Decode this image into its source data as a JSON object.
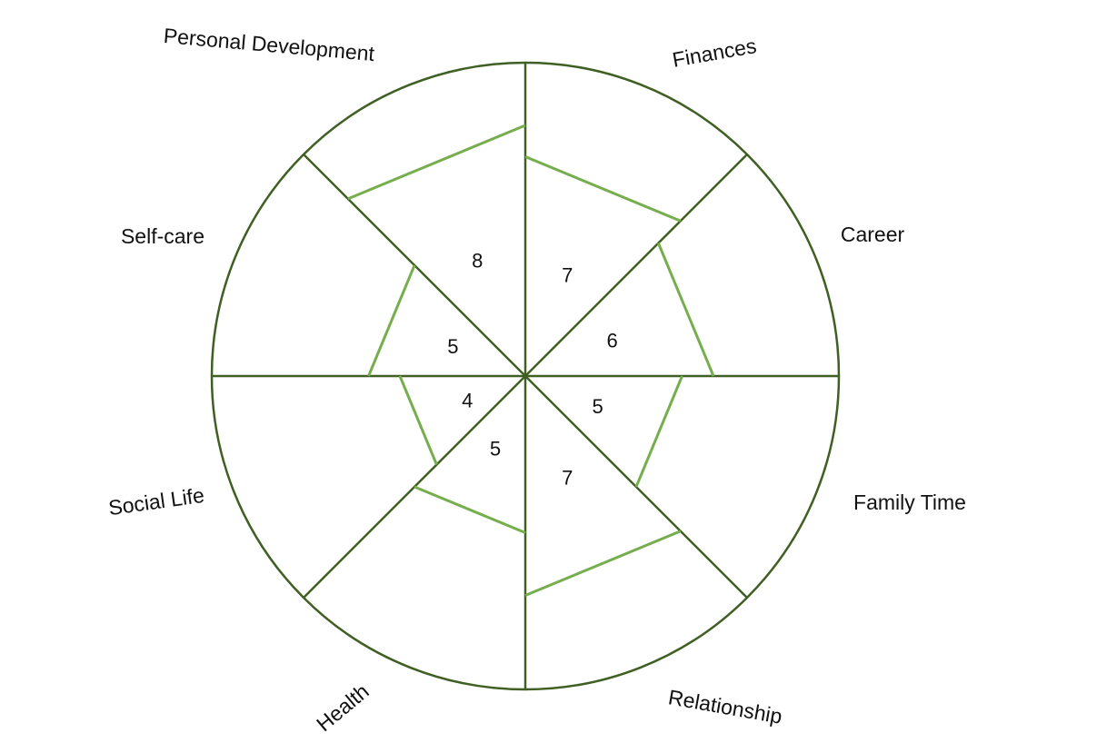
{
  "colors": {
    "wheel_stroke": "#3f5f23",
    "score_stroke": "#76ae4e",
    "text": "#111111",
    "background": "#ffffff"
  },
  "max_score": 10,
  "chart_data": {
    "type": "radar",
    "categories": [
      "Finances",
      "Career",
      "Family Time",
      "Relationship",
      "Health",
      "Social Life",
      "Self-care",
      "Personal Development"
    ],
    "scores": [
      7,
      6,
      5,
      7,
      5,
      4,
      5,
      8
    ],
    "score_labels": [
      "7",
      "6",
      "5",
      "7",
      "5",
      "4",
      "5",
      "8"
    ]
  }
}
